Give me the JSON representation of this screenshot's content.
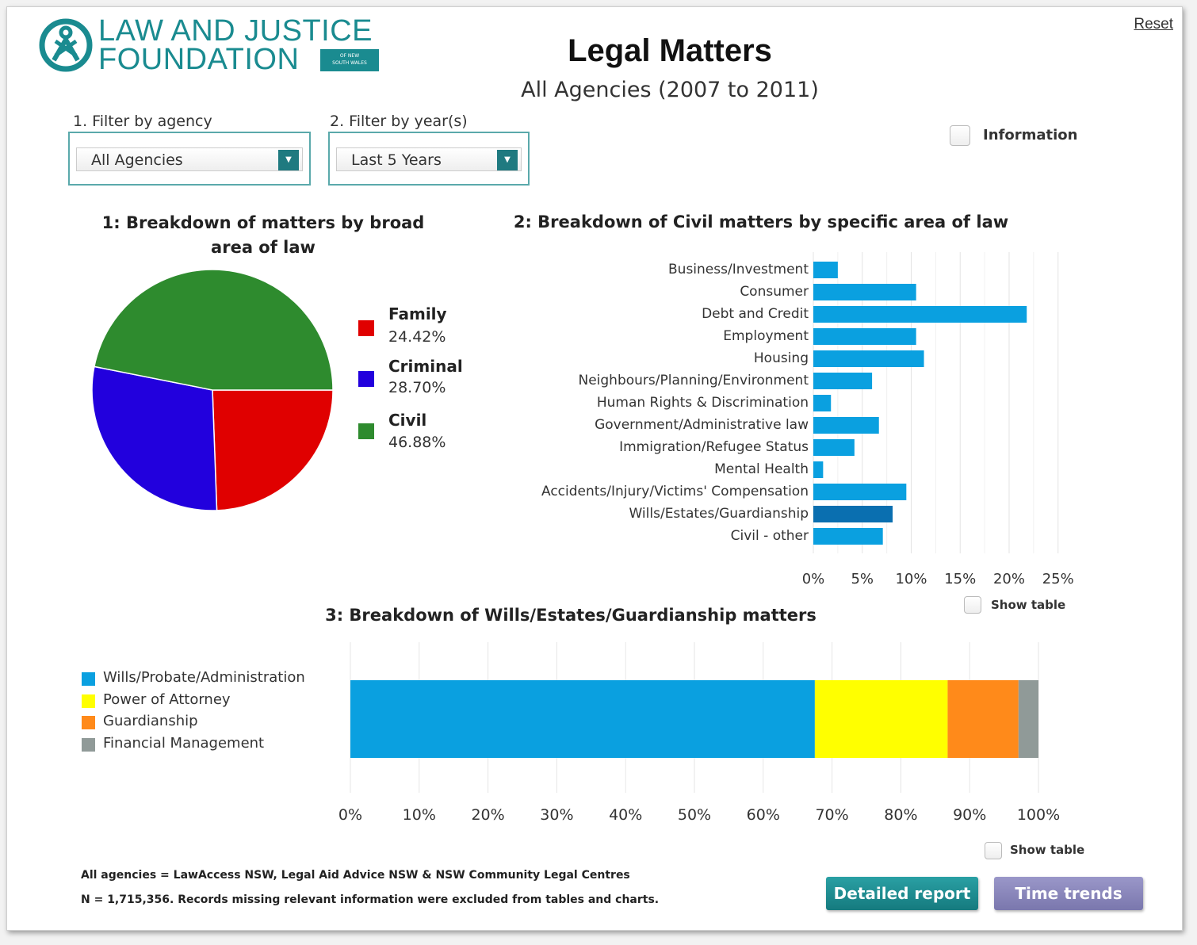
{
  "header": {
    "logo_line1": "LAW AND JUSTICE",
    "logo_line2": "FOUNDATION",
    "logo_badge_line1": "OF NEW",
    "logo_badge_line2": "SOUTH WALES",
    "title": "Legal Matters",
    "subtitle": "All Agencies (2007 to 2011)",
    "reset_label": "Reset"
  },
  "filters": {
    "agency_label": "1. Filter by agency",
    "agency_value": "All Agencies",
    "years_label": "2. Filter by year(s)",
    "years_value": "Last 5 Years"
  },
  "information_label": "Information",
  "show_table_label": "Show table",
  "colors": {
    "teal": "#1a8b90",
    "family": "#e00000",
    "criminal": "#2200dd",
    "civil": "#2e8b2e",
    "bar": "#0aa0e0",
    "bar_highlight": "#0a6fb0",
    "yellow": "#ffff00",
    "orange": "#ff8a1a",
    "grey": "#909a98"
  },
  "chart_data": [
    {
      "type": "pie",
      "title": "1: Breakdown of matters by broad area of law",
      "categories": [
        "Family",
        "Criminal",
        "Civil"
      ],
      "values": [
        24.42,
        28.7,
        46.88
      ],
      "labels": [
        "24.42%",
        "28.70%",
        "46.88%"
      ],
      "legend": "right"
    },
    {
      "type": "bar",
      "orientation": "horizontal",
      "title": "2: Breakdown of Civil matters by specific area of law",
      "categories": [
        "Business/Investment",
        "Consumer",
        "Debt and Credit",
        "Employment",
        "Housing",
        "Neighbours/Planning/Environment",
        "Human Rights & Discrimination",
        "Government/Administrative law",
        "Immigration/Refugee Status",
        "Mental Health",
        "Accidents/Injury/Victims' Compensation",
        "Wills/Estates/Guardianship",
        "Civil - other"
      ],
      "values": [
        2.5,
        10.5,
        21.8,
        10.5,
        11.3,
        6.0,
        1.8,
        6.7,
        4.2,
        1.0,
        9.5,
        8.1,
        7.1
      ],
      "highlighted": "Wills/Estates/Guardianship",
      "xlim": [
        0,
        25
      ],
      "xticks": [
        "0%",
        "5%",
        "10%",
        "15%",
        "20%",
        "25%"
      ],
      "grid": true
    },
    {
      "type": "bar",
      "orientation": "horizontal",
      "stacked": true,
      "title": "3: Breakdown of Wills/Estates/Guardianship matters",
      "series": [
        {
          "name": "Wills/Probate/Administration",
          "values": [
            67.5
          ]
        },
        {
          "name": "Power of Attorney",
          "values": [
            19.3
          ]
        },
        {
          "name": "Guardianship",
          "values": [
            10.3
          ]
        },
        {
          "name": "Financial Management",
          "values": [
            2.9
          ]
        }
      ],
      "xlim": [
        0,
        100
      ],
      "xticks": [
        "0%",
        "10%",
        "20%",
        "30%",
        "40%",
        "50%",
        "60%",
        "70%",
        "80%",
        "90%",
        "100%"
      ],
      "legend": "left",
      "grid": true
    }
  ],
  "footer": {
    "note1": "All agencies = LawAccess NSW, Legal Aid Advice NSW & NSW Community Legal Centres",
    "note2": "N = 1,715,356. Records missing relevant information were excluded from tables and charts.",
    "detailed_report_label": "Detailed report",
    "time_trends_label": "Time trends"
  }
}
